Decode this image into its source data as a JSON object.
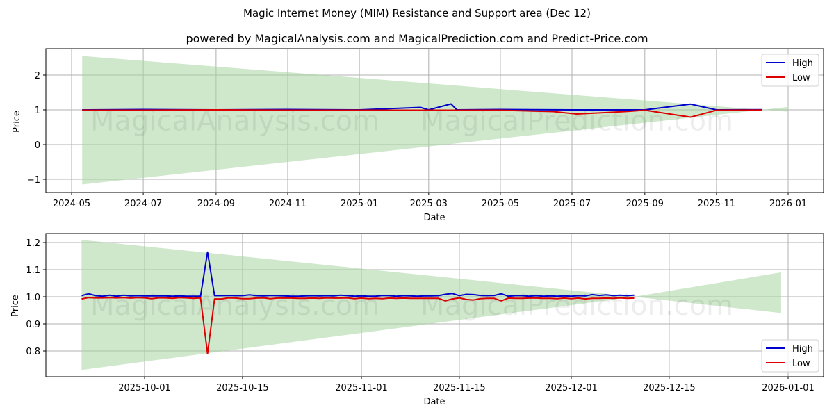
{
  "header": {
    "title": "Magic Internet Money (MIM) Resistance and Support area (Dec 12)",
    "subtitle": "powered by MagicalAnalysis.com and MagicalPrediction.com and Predict-Price.com"
  },
  "watermarks": [
    "MagicalAnalysis.com",
    "MagicalPrediction.com"
  ],
  "colors": {
    "high": "#0000cc",
    "low": "#dd0000",
    "band": "#a8d5a2",
    "grid": "#b0b0b0"
  },
  "chart_data": [
    {
      "type": "line",
      "title": "",
      "xlabel": "Date",
      "ylabel": "Price",
      "ylim": [
        -1.35,
        2.75
      ],
      "grid": true,
      "legend_position": "upper right",
      "x_tick_labels": [
        "2024-05",
        "2024-07",
        "2024-09",
        "2024-11",
        "2025-01",
        "2025-03",
        "2025-05",
        "2025-07",
        "2025-09",
        "2025-11",
        "2026-01"
      ],
      "y_tick_labels": [
        "−1",
        "0",
        "1",
        "2"
      ],
      "legend": [
        "High",
        "Low"
      ],
      "band": {
        "x": [
          "2024-05-10",
          "2025-12-10",
          "2025-12-31"
        ],
        "upper": [
          2.55,
          1.0,
          1.08
        ],
        "lower": [
          -1.15,
          1.0,
          0.95
        ]
      },
      "series": [
        {
          "name": "High",
          "x": [
            "2024-05-10",
            "2024-07-01",
            "2024-09-01",
            "2024-11-01",
            "2025-01-01",
            "2025-02-22",
            "2025-03-01",
            "2025-03-20",
            "2025-03-25",
            "2025-05-01",
            "2025-07-01",
            "2025-09-01",
            "2025-10-10",
            "2025-11-01",
            "2025-12-10"
          ],
          "values": [
            1.0,
            1.01,
            1.0,
            1.01,
            1.0,
            1.07,
            1.0,
            1.17,
            1.0,
            1.01,
            1.0,
            1.0,
            1.165,
            1.0,
            1.005
          ]
        },
        {
          "name": "Low",
          "x": [
            "2024-05-10",
            "2024-07-01",
            "2024-09-01",
            "2024-11-01",
            "2025-01-01",
            "2025-03-01",
            "2025-05-01",
            "2025-06-15",
            "2025-07-05",
            "2025-08-15",
            "2025-09-01",
            "2025-10-10",
            "2025-11-01",
            "2025-12-10"
          ],
          "values": [
            0.99,
            0.99,
            1.0,
            0.99,
            0.99,
            0.99,
            0.99,
            0.95,
            0.88,
            0.95,
            0.99,
            0.79,
            0.99,
            0.995
          ]
        }
      ]
    },
    {
      "type": "line",
      "title": "",
      "xlabel": "Date",
      "ylabel": "Price",
      "ylim": [
        0.705,
        1.235
      ],
      "grid": true,
      "legend_position": "lower right",
      "x_tick_labels": [
        "2025-10-01",
        "2025-10-15",
        "2025-11-01",
        "2025-11-15",
        "2025-12-01",
        "2025-12-15",
        "2026-01-01"
      ],
      "y_tick_labels": [
        "0.8",
        "0.9",
        "1.0",
        "1.1",
        "1.2"
      ],
      "legend": [
        "High",
        "Low"
      ],
      "band": {
        "x": [
          "2025-09-22",
          "2025-12-10",
          "2025-12-31"
        ],
        "upper": [
          1.21,
          1.0,
          1.09
        ],
        "lower": [
          0.73,
          1.0,
          0.94
        ]
      },
      "series": [
        {
          "name": "High",
          "x": [
            "2025-09-22",
            "2025-09-23",
            "2025-09-24",
            "2025-09-25",
            "2025-09-26",
            "2025-09-27",
            "2025-09-28",
            "2025-09-29",
            "2025-09-30",
            "2025-10-01",
            "2025-10-02",
            "2025-10-03",
            "2025-10-04",
            "2025-10-05",
            "2025-10-06",
            "2025-10-07",
            "2025-10-08",
            "2025-10-09",
            "2025-10-10",
            "2025-10-11",
            "2025-10-12",
            "2025-10-13",
            "2025-10-14",
            "2025-10-15",
            "2025-10-16",
            "2025-10-17",
            "2025-10-18",
            "2025-10-19",
            "2025-10-20",
            "2025-10-21",
            "2025-10-22",
            "2025-10-23",
            "2025-10-24",
            "2025-10-25",
            "2025-10-26",
            "2025-10-27",
            "2025-10-28",
            "2025-10-29",
            "2025-10-30",
            "2025-10-31",
            "2025-11-01",
            "2025-11-02",
            "2025-11-03",
            "2025-11-04",
            "2025-11-05",
            "2025-11-06",
            "2025-11-07",
            "2025-11-08",
            "2025-11-09",
            "2025-11-10",
            "2025-11-11",
            "2025-11-12",
            "2025-11-13",
            "2025-11-14",
            "2025-11-15",
            "2025-11-16",
            "2025-11-17",
            "2025-11-18",
            "2025-11-19",
            "2025-11-20",
            "2025-11-21",
            "2025-11-22",
            "2025-11-23",
            "2025-11-24",
            "2025-11-25",
            "2025-11-26",
            "2025-11-27",
            "2025-11-28",
            "2025-11-29",
            "2025-11-30",
            "2025-12-01",
            "2025-12-02",
            "2025-12-03",
            "2025-12-04",
            "2025-12-05",
            "2025-12-06",
            "2025-12-07",
            "2025-12-08",
            "2025-12-09",
            "2025-12-10"
          ],
          "values": [
            1.004,
            1.011,
            1.004,
            1.002,
            1.006,
            1.002,
            1.006,
            1.003,
            1.004,
            1.003,
            1.003,
            1.003,
            1.003,
            1.002,
            1.003,
            1.002,
            1.002,
            1.002,
            1.165,
            1.004,
            1.004,
            1.005,
            1.004,
            1.004,
            1.007,
            1.004,
            1.003,
            1.005,
            1.004,
            1.003,
            1.002,
            1.002,
            1.003,
            1.004,
            1.003,
            1.004,
            1.003,
            1.006,
            1.004,
            1.002,
            1.003,
            1.002,
            1.002,
            1.005,
            1.004,
            1.002,
            1.004,
            1.003,
            1.002,
            1.003,
            1.003,
            1.004,
            1.009,
            1.012,
            1.004,
            1.009,
            1.008,
            1.005,
            1.004,
            1.005,
            1.011,
            1.002,
            1.004,
            1.004,
            1.002,
            1.004,
            1.002,
            1.003,
            1.002,
            1.003,
            1.002,
            1.004,
            1.003,
            1.008,
            1.005,
            1.007,
            1.004,
            1.006,
            1.004,
            1.006
          ]
        },
        {
          "name": "Low",
          "x": [
            "2025-09-22",
            "2025-09-23",
            "2025-09-24",
            "2025-09-25",
            "2025-09-26",
            "2025-09-27",
            "2025-09-28",
            "2025-09-29",
            "2025-09-30",
            "2025-10-01",
            "2025-10-02",
            "2025-10-03",
            "2025-10-04",
            "2025-10-05",
            "2025-10-06",
            "2025-10-07",
            "2025-10-08",
            "2025-10-09",
            "2025-10-10",
            "2025-10-11",
            "2025-10-12",
            "2025-10-13",
            "2025-10-14",
            "2025-10-15",
            "2025-10-16",
            "2025-10-17",
            "2025-10-18",
            "2025-10-19",
            "2025-10-20",
            "2025-10-21",
            "2025-10-22",
            "2025-10-23",
            "2025-10-24",
            "2025-10-25",
            "2025-10-26",
            "2025-10-27",
            "2025-10-28",
            "2025-10-29",
            "2025-10-30",
            "2025-10-31",
            "2025-11-01",
            "2025-11-02",
            "2025-11-03",
            "2025-11-04",
            "2025-11-05",
            "2025-11-06",
            "2025-11-07",
            "2025-11-08",
            "2025-11-09",
            "2025-11-10",
            "2025-11-11",
            "2025-11-12",
            "2025-11-13",
            "2025-11-14",
            "2025-11-15",
            "2025-11-16",
            "2025-11-17",
            "2025-11-18",
            "2025-11-19",
            "2025-11-20",
            "2025-11-21",
            "2025-11-22",
            "2025-11-23",
            "2025-11-24",
            "2025-11-25",
            "2025-11-26",
            "2025-11-27",
            "2025-11-28",
            "2025-11-29",
            "2025-11-30",
            "2025-12-01",
            "2025-12-02",
            "2025-12-03",
            "2025-12-04",
            "2025-12-05",
            "2025-12-06",
            "2025-12-07",
            "2025-12-08",
            "2025-12-09",
            "2025-12-10"
          ],
          "values": [
            0.992,
            0.997,
            0.996,
            0.996,
            0.997,
            0.996,
            0.997,
            0.995,
            0.997,
            0.996,
            0.993,
            0.996,
            0.996,
            0.994,
            0.997,
            0.996,
            0.994,
            0.996,
            0.79,
            0.992,
            0.992,
            0.996,
            0.995,
            0.993,
            0.993,
            0.995,
            0.996,
            0.993,
            0.995,
            0.995,
            0.995,
            0.994,
            0.994,
            0.995,
            0.994,
            0.996,
            0.995,
            0.995,
            0.996,
            0.993,
            0.995,
            0.993,
            0.994,
            0.993,
            0.995,
            0.994,
            0.995,
            0.994,
            0.994,
            0.994,
            0.994,
            0.994,
            0.985,
            0.992,
            0.996,
            0.99,
            0.988,
            0.993,
            0.994,
            0.994,
            0.985,
            0.995,
            0.994,
            0.994,
            0.995,
            0.995,
            0.994,
            0.994,
            0.993,
            0.995,
            0.993,
            0.995,
            0.992,
            0.994,
            0.994,
            0.995,
            0.994,
            0.996,
            0.994,
            0.995
          ]
        }
      ]
    }
  ]
}
